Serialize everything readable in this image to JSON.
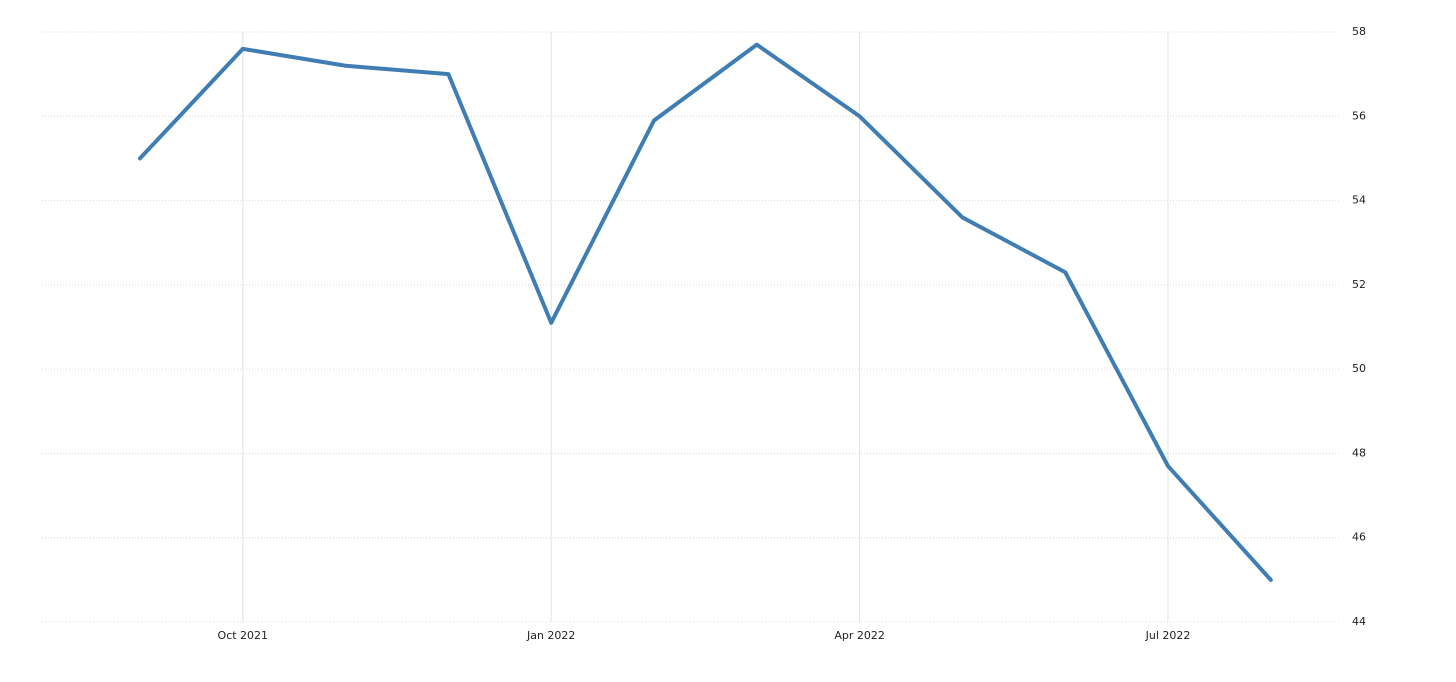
{
  "chart_data": {
    "type": "line",
    "categories": [
      null,
      "Oct 2021",
      null,
      null,
      "Jan 2022",
      null,
      null,
      "Apr 2022",
      null,
      null,
      "Jul 2022",
      null
    ],
    "series": [
      {
        "name": null,
        "color": "#3f7db3",
        "values": [
          55.0,
          57.6,
          57.2,
          57.0,
          51.1,
          55.9,
          57.7,
          56.0,
          53.6,
          52.3,
          47.7,
          45.0
        ]
      }
    ],
    "ylim": [
      44,
      58
    ],
    "yticks": [
      44,
      46,
      48,
      50,
      52,
      54,
      56,
      58
    ],
    "grid": true
  }
}
